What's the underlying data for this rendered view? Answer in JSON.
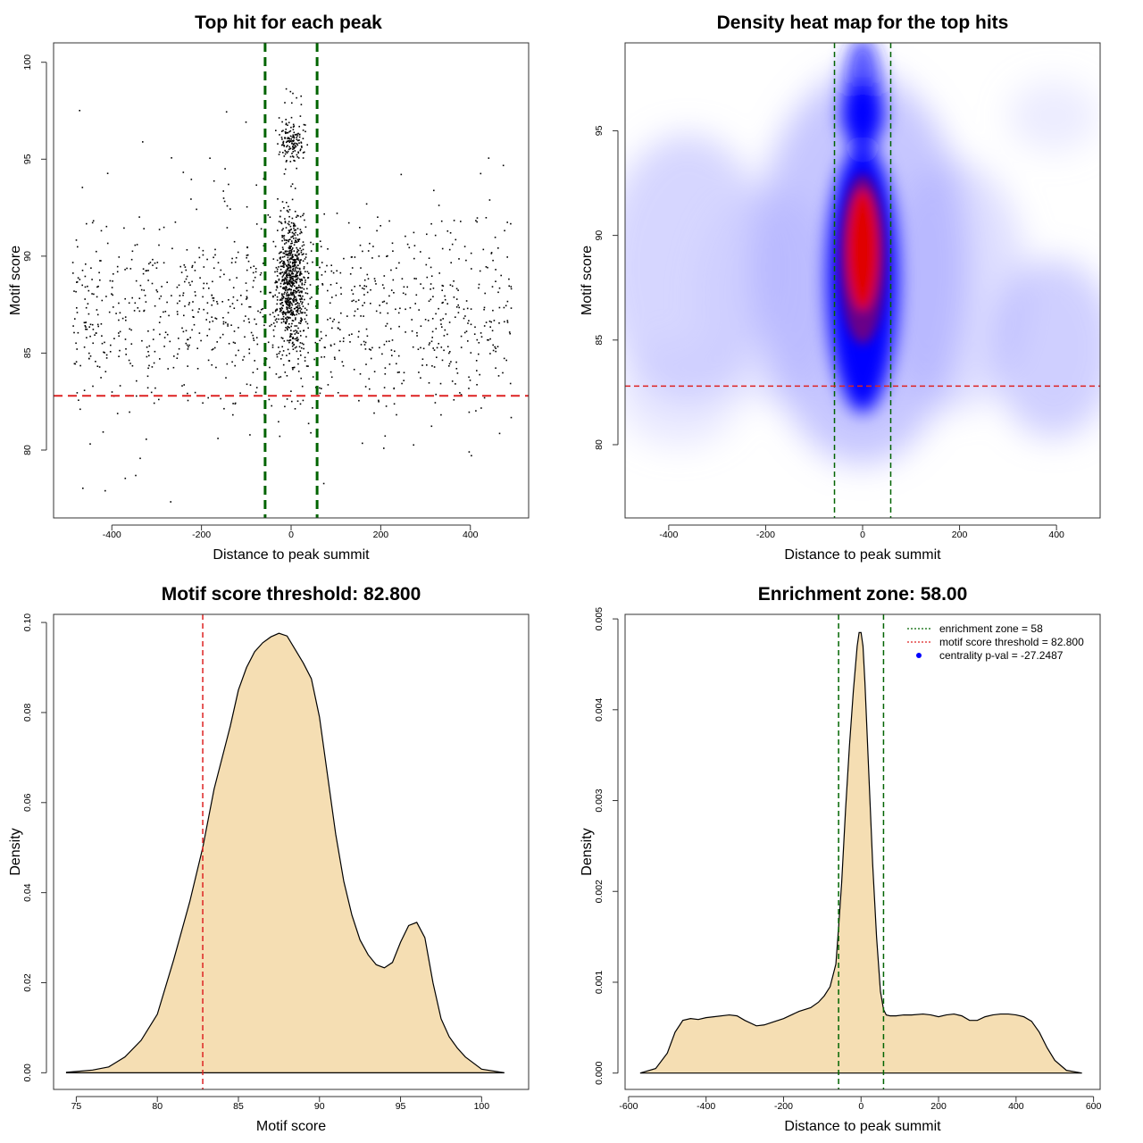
{
  "colors": {
    "fill": "#F5DEB3",
    "enrichment": "#006400",
    "threshold": "#DD2222",
    "point": "#000000",
    "pval": "#0000FF"
  },
  "chart_data": [
    {
      "id": "scatter",
      "type": "scatter",
      "title": "Top hit for each peak",
      "xlabel": "Distance to peak summit",
      "ylabel": "Motif score",
      "xlim": [
        -530,
        530
      ],
      "ylim": [
        76.5,
        101.0
      ],
      "xticks": [
        -400,
        -200,
        0,
        200,
        400
      ],
      "xtick_labels": [
        "-400",
        "-200",
        "0",
        "200",
        "400"
      ],
      "yticks": [
        80,
        85,
        90,
        95,
        100
      ],
      "ytick_labels": [
        "80",
        "85",
        "90",
        "95",
        "100"
      ],
      "enrichment_lines": [
        -58,
        58
      ],
      "threshold_line": 82.8,
      "n_points_approx": 2000,
      "note": "points: broad background over [-500,500] x [77,99], dense column near x=0 between scores 83 and 99"
    },
    {
      "id": "heatmap",
      "type": "heatmap",
      "title": "Density heat map for the top hits",
      "xlabel": "Distance to peak summit",
      "ylabel": "Motif score",
      "xlim": [
        -490,
        490
      ],
      "ylim": [
        76.5,
        99.2
      ],
      "xticks": [
        -400,
        -200,
        0,
        200,
        400
      ],
      "xtick_labels": [
        "-400",
        "-200",
        "0",
        "200",
        "400"
      ],
      "yticks": [
        80,
        85,
        90,
        95
      ],
      "ytick_labels": [
        "80",
        "85",
        "90",
        "95"
      ],
      "enrichment_lines": [
        -58,
        58
      ],
      "threshold_line": 82.8,
      "density_peaks": [
        {
          "x": 0,
          "y": 89.5,
          "level": "max"
        },
        {
          "x": 0,
          "y": 96,
          "level": "high"
        }
      ]
    },
    {
      "id": "score-density",
      "type": "area",
      "title": "Motif score threshold: 82.800",
      "xlabel": "Motif score",
      "ylabel": "Density",
      "xlim": [
        73.6,
        102.9
      ],
      "ylim": [
        -0.0037,
        0.1018
      ],
      "xticks": [
        75,
        80,
        85,
        90,
        95,
        100
      ],
      "xtick_labels": [
        "75",
        "80",
        "85",
        "90",
        "95",
        "100"
      ],
      "yticks": [
        0,
        0.02,
        0.04,
        0.06,
        0.08,
        0.1
      ],
      "ytick_labels": [
        "0.00",
        "0.02",
        "0.04",
        "0.06",
        "0.08",
        "0.10"
      ],
      "threshold_line": 82.8,
      "x": [
        74.4,
        76,
        77,
        78,
        79,
        80,
        81,
        82,
        82.8,
        83.5,
        84.5,
        85,
        85.5,
        86,
        86.5,
        87,
        87.5,
        88,
        88.5,
        89,
        89.5,
        90,
        90.5,
        91,
        91.5,
        92,
        92.5,
        93,
        93.5,
        94,
        94.5,
        95,
        95.5,
        96,
        96.5,
        97,
        97.5,
        98,
        98.5,
        99,
        100,
        101.4
      ],
      "y": [
        0.0001,
        0.0006,
        0.0013,
        0.0035,
        0.0072,
        0.013,
        0.025,
        0.038,
        0.05,
        0.063,
        0.077,
        0.085,
        0.09,
        0.0935,
        0.0955,
        0.0968,
        0.0976,
        0.097,
        0.094,
        0.091,
        0.0875,
        0.079,
        0.066,
        0.053,
        0.0425,
        0.035,
        0.0295,
        0.0262,
        0.024,
        0.0233,
        0.0245,
        0.029,
        0.0327,
        0.0334,
        0.03,
        0.02,
        0.012,
        0.008,
        0.0055,
        0.0035,
        0.0008,
        0.0
      ]
    },
    {
      "id": "distance-density",
      "type": "area",
      "title": "Enrichment zone: 58.00",
      "xlabel": "Distance to peak summit",
      "ylabel": "Density",
      "xlim": [
        -609,
        617
      ],
      "ylim": [
        -0.00018,
        0.00505
      ],
      "xticks": [
        -600,
        -400,
        -200,
        0,
        200,
        400,
        600
      ],
      "xtick_labels": [
        "-600",
        "-400",
        "-200",
        "0",
        "200",
        "400",
        "600"
      ],
      "yticks": [
        0,
        0.001,
        0.002,
        0.003,
        0.004,
        0.005
      ],
      "ytick_labels": [
        "0.000",
        "0.001",
        "0.002",
        "0.003",
        "0.004",
        "0.005"
      ],
      "enrichment_lines": [
        -58,
        58
      ],
      "x": [
        -570,
        -530,
        -500,
        -480,
        -460,
        -440,
        -420,
        -400,
        -380,
        -340,
        -320,
        -300,
        -270,
        -250,
        -200,
        -160,
        -130,
        -110,
        -95,
        -80,
        -65,
        -58,
        -50,
        -40,
        -30,
        -20,
        -10,
        -5,
        0,
        5,
        10,
        20,
        30,
        40,
        50,
        58,
        65,
        75,
        90,
        110,
        130,
        160,
        180,
        200,
        220,
        240,
        260,
        280,
        300,
        320,
        340,
        360,
        380,
        400,
        420,
        440,
        460,
        480,
        500,
        530,
        570
      ],
      "y": [
        0.0,
        5e-05,
        0.00022,
        0.00045,
        0.00058,
        0.0006,
        0.00059,
        0.00061,
        0.00062,
        0.00064,
        0.00063,
        0.00058,
        0.00052,
        0.00053,
        0.0006,
        0.00068,
        0.00072,
        0.00078,
        0.00085,
        0.00095,
        0.0012,
        0.0016,
        0.0021,
        0.0029,
        0.0036,
        0.0042,
        0.0047,
        0.00485,
        0.00485,
        0.0047,
        0.0043,
        0.0033,
        0.0023,
        0.0015,
        0.0009,
        0.0007,
        0.00064,
        0.00063,
        0.00063,
        0.00064,
        0.00064,
        0.00065,
        0.00064,
        0.00062,
        0.00064,
        0.00065,
        0.00063,
        0.00058,
        0.00058,
        0.00062,
        0.00064,
        0.00065,
        0.00065,
        0.00064,
        0.00062,
        0.00057,
        0.00045,
        0.00028,
        0.00014,
        3e-05,
        0.0
      ],
      "legend": [
        {
          "label": "enrichment zone = 58",
          "style": "dotted",
          "color": "#006400"
        },
        {
          "label": "motif score threshold = 82.800",
          "style": "dotted",
          "color": "#DD2222"
        },
        {
          "label": "centrality p-val = -27.2487",
          "style": "point",
          "color": "#0000FF"
        }
      ],
      "legend_position": "top-right"
    }
  ]
}
